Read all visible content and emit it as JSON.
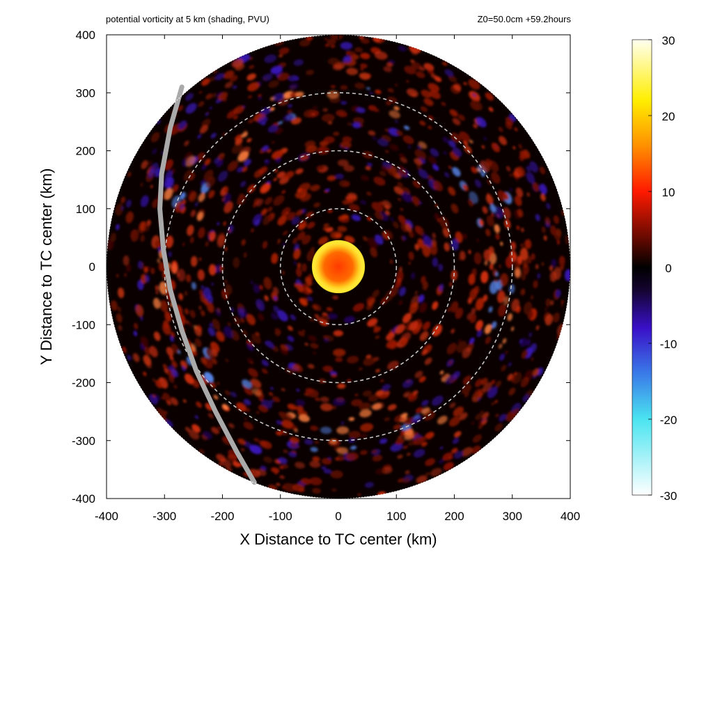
{
  "chart_data": {
    "type": "heatmap",
    "title_left": "potential vorticity at 5 km (shading, PVU)",
    "title_right": "Z0=50.0cm  +59.2hours",
    "xlabel": "X Distance to TC center (km)",
    "ylabel": "Y Distance to TC center (km)",
    "xlim": [
      -400,
      400
    ],
    "ylim": [
      -400,
      400
    ],
    "xticks": [
      "-400",
      "-300",
      "-200",
      "-100",
      "0",
      "100",
      "200",
      "300",
      "400"
    ],
    "yticks": [
      "-400",
      "-300",
      "-200",
      "-100",
      "0",
      "100",
      "200",
      "300",
      "400"
    ],
    "domain_radius": 400,
    "range_rings": [
      100,
      200,
      300
    ],
    "colorbar": {
      "min": -30,
      "max": 30,
      "ticks": [
        "30",
        "20",
        "10",
        "0",
        "-10",
        "-20",
        "-30"
      ],
      "colors": [
        [
          -30,
          "#ffffff"
        ],
        [
          -20,
          "#4ae4f0"
        ],
        [
          -14,
          "#3a7ae8"
        ],
        [
          -8,
          "#3a10c8"
        ],
        [
          -3,
          "#140430"
        ],
        [
          0,
          "#000000"
        ],
        [
          4,
          "#6a0a00"
        ],
        [
          10,
          "#ff1a00"
        ],
        [
          16,
          "#ff9000"
        ],
        [
          22,
          "#ffee00"
        ],
        [
          30,
          "#fffff0"
        ]
      ]
    },
    "features": {
      "eyewall_radius_km": 45,
      "inner_core_color": "#ff3a00",
      "eyewall_color": "#ffe830",
      "background_color": "#0a0000",
      "spiral_band_color": "#a01a00",
      "track_color": "#aaaaaa"
    },
    "track": {
      "x": [
        -270,
        -290,
        -305,
        -308,
        -302,
        -290,
        -270,
        -245,
        -212,
        -175,
        -145
      ],
      "y": [
        310,
        240,
        160,
        100,
        30,
        -40,
        -110,
        -180,
        -250,
        -320,
        -372
      ]
    }
  }
}
